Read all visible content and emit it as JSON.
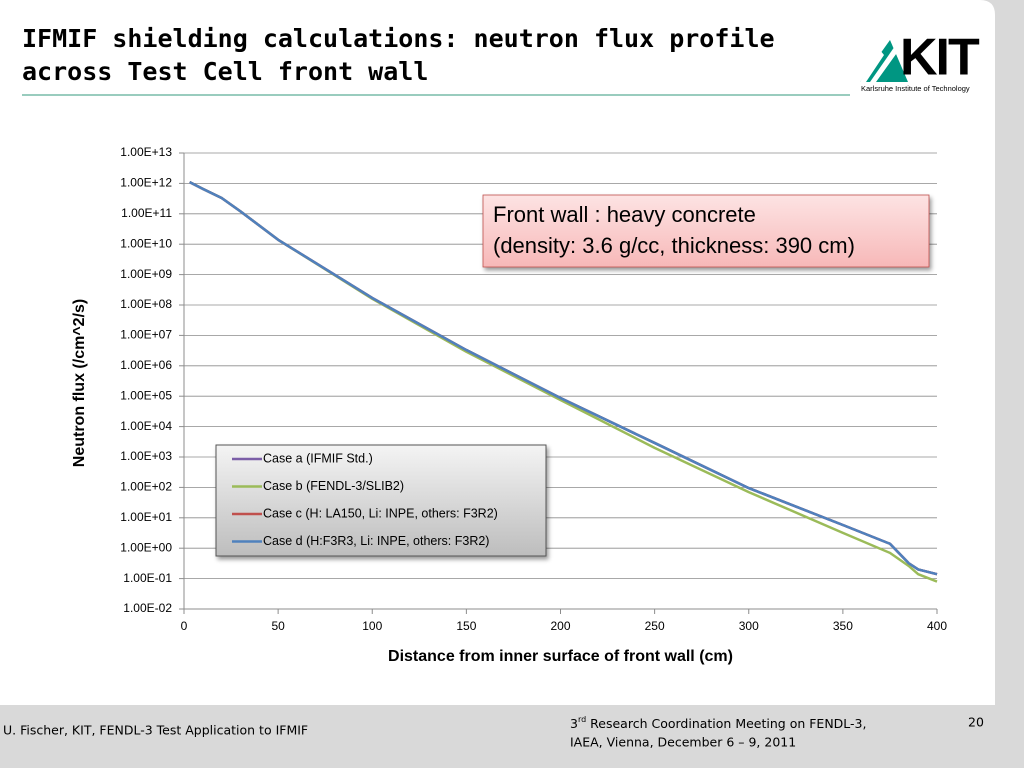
{
  "header": {
    "title_line1": "IFMIF shielding calculations: neutron flux profile",
    "title_line2": "across Test Cell front wall",
    "logo": "KIT",
    "logo_subtitle": "Karlsruhe Institute of Technology"
  },
  "chart_data": {
    "type": "line",
    "x_label": "Distance from inner surface of front wall (cm)",
    "y_label": "Neutron flux (/cm^2/s)",
    "annotation": [
      "Front wall : heavy concrete",
      "(density: 3.6 g/cc, thickness: 390 cm)"
    ],
    "log_y": true,
    "grid": true,
    "xlim": [
      0,
      400
    ],
    "xticks": [
      0,
      50,
      100,
      150,
      200,
      250,
      300,
      350,
      400
    ],
    "ylim": [
      0.01,
      10000000000000
    ],
    "yticks": [
      {
        "value": 0.01,
        "label": "1.00E-02"
      },
      {
        "value": 0.1,
        "label": "1.00E-01"
      },
      {
        "value": 1,
        "label": "1.00E+00"
      },
      {
        "value": 10,
        "label": "1.00E+01"
      },
      {
        "value": 100,
        "label": "1.00E+02"
      },
      {
        "value": 1000,
        "label": "1.00E+03"
      },
      {
        "value": 10000,
        "label": "1.00E+04"
      },
      {
        "value": 100000,
        "label": "1.00E+05"
      },
      {
        "value": 1000000,
        "label": "1.00E+06"
      },
      {
        "value": 10000000,
        "label": "1.00E+07"
      },
      {
        "value": 100000000,
        "label": "1.00E+08"
      },
      {
        "value": 1000000000,
        "label": "1.00E+09"
      },
      {
        "value": 10000000000,
        "label": "1.00E+10"
      },
      {
        "value": 100000000000,
        "label": "1.00E+11"
      },
      {
        "value": 1000000000000,
        "label": "1.00E+12"
      },
      {
        "value": 10000000000000,
        "label": "1.00E+13"
      }
    ],
    "x": [
      3,
      10,
      20,
      30,
      50,
      100,
      150,
      200,
      250,
      300,
      350,
      375,
      385,
      390,
      400
    ],
    "series": [
      {
        "name": "Case a (IFMIF Std.)",
        "color": "#7b5ea7",
        "values": [
          1100000000000,
          660000000000,
          330000000000,
          120000000000,
          14000000000,
          170000000,
          3300000,
          87000,
          2900,
          95,
          5.8,
          1.4,
          0.32,
          0.2,
          0.14
        ]
      },
      {
        "name": "Case b (FENDL-3/SLIB2)",
        "color": "#9bbb59",
        "values": [
          1100000000000,
          660000000000,
          330000000000,
          120000000000,
          14000000000,
          160000000,
          2900000,
          75000,
          2000,
          70,
          3.2,
          0.7,
          0.26,
          0.14,
          0.08
        ]
      },
      {
        "name": "Case c (H: LA150, Li: INPE, others: F3R2)",
        "color": "#c0504d",
        "values": [
          1100000000000,
          660000000000,
          330000000000,
          120000000000,
          14000000000,
          170000000,
          3300000,
          87000,
          2900,
          95,
          5.8,
          1.4,
          0.32,
          0.2,
          0.14
        ]
      },
      {
        "name": "Case d (H:F3R3, Li: INPE, others: F3R2)",
        "color": "#4f81bd",
        "values": [
          1100000000000,
          660000000000,
          330000000000,
          120000000000,
          14000000000,
          170000000,
          3300000,
          87000,
          2900,
          95,
          5.8,
          1.4,
          0.32,
          0.2,
          0.14
        ]
      }
    ]
  },
  "footer": {
    "author": "U. Fischer, KIT, FENDL-3 Test Application to IFMIF",
    "ordinal": "3",
    "ordinal_suffix": "rd",
    "meeting_line1": " Research Coordination Meeting on FENDL-3,",
    "meeting_line2": "IAEA, Vienna, December 6 – 9, 2011",
    "page": "20"
  }
}
